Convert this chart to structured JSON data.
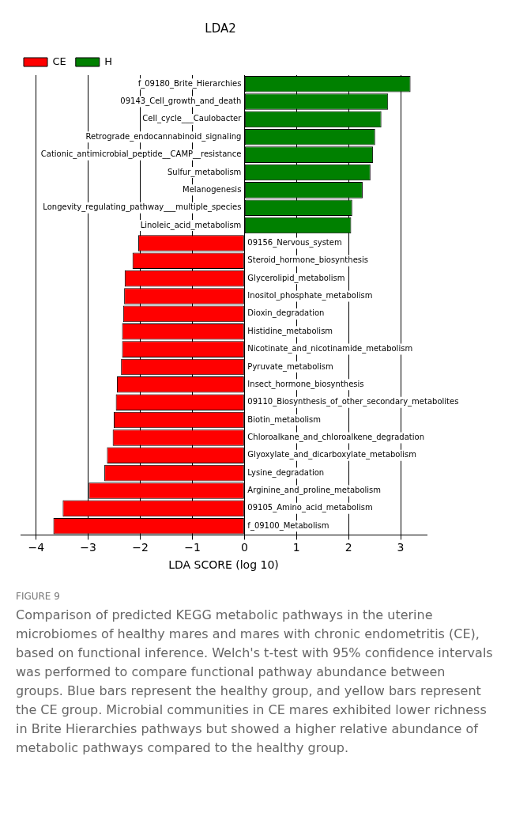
{
  "chart_data": {
    "type": "bar",
    "orientation": "horizontal",
    "title": "LDA2",
    "xlabel": "LDA SCORE (log 10)",
    "categories": [
      "f_09180_Brite_Hierarchies",
      "09143_Cell_growth_and_death",
      "Cell_cycle___Caulobacter",
      "Retrograde_endocannabinoid_signaling",
      "Cationic_antimicrobial_peptide__CAMP__resistance",
      "Sulfur_metabolism",
      "Melanogenesis",
      "Longevity_regulating_pathway___multiple_species",
      "Linoleic_acid_metabolism",
      "09156_Nervous_system",
      "Steroid_hormone_biosynthesis",
      "Glycerolipid_metabolism",
      "Inositol_phosphate_metabolism",
      "Dioxin_degradation",
      "Histidine_metabolism",
      "Nicotinate_and_nicotinamide_metabolism",
      "Pyruvate_metabolism",
      "Insect_hormone_biosynthesis",
      "09110_Biosynthesis_of_other_secondary_metabolites",
      "Biotin_metabolism",
      "Chloroalkane_and_chloroalkene_degradation",
      "Glyoxylate_and_dicarboxylate_metabolism",
      "Lysine_degradation",
      "Arginine_and_proline_metabolism",
      "09105_Amino_acid_metabolism",
      "f_09100_Metabolism"
    ],
    "series": [
      {
        "name": "CE",
        "color": "#ff0000",
        "values": [
          null,
          null,
          null,
          null,
          null,
          null,
          null,
          null,
          null,
          -2.04,
          -2.15,
          -2.3,
          -2.31,
          -2.33,
          -2.35,
          -2.35,
          -2.37,
          -2.45,
          -2.47,
          -2.51,
          -2.53,
          -2.64,
          -2.69,
          -2.99,
          -3.49,
          -3.67
        ]
      },
      {
        "name": "H",
        "color": "#008000",
        "values": [
          3.19,
          2.76,
          2.63,
          2.51,
          2.47,
          2.42,
          2.27,
          2.07,
          2.05,
          null,
          null,
          null,
          null,
          null,
          null,
          null,
          null,
          null,
          null,
          null,
          null,
          null,
          null,
          null,
          null,
          null
        ]
      }
    ],
    "xlim": [
      -4.3,
      3.5
    ],
    "xticks": [
      -4,
      -3,
      -2,
      -1,
      0,
      1,
      2,
      3
    ],
    "grid": "x",
    "legend": "top left",
    "annotations": [
      "FIGURE 9",
      "Comparison of predicted KEGG metabolic pathways in the uterine microbiomes of healthy mares and mares with chronic endometritis (CE), based on functional inference. Welch's t-test with 95% confidence intervals was performed to compare functional pathway abundance between groups. Blue bars represent the healthy group, and yellow bars represent the CE group. Microbial communities in CE mares exhibited lower richness in Brite Hierarchies pathways but showed a higher relative abundance of metabolic pathways compared to the healthy group."
    ]
  }
}
